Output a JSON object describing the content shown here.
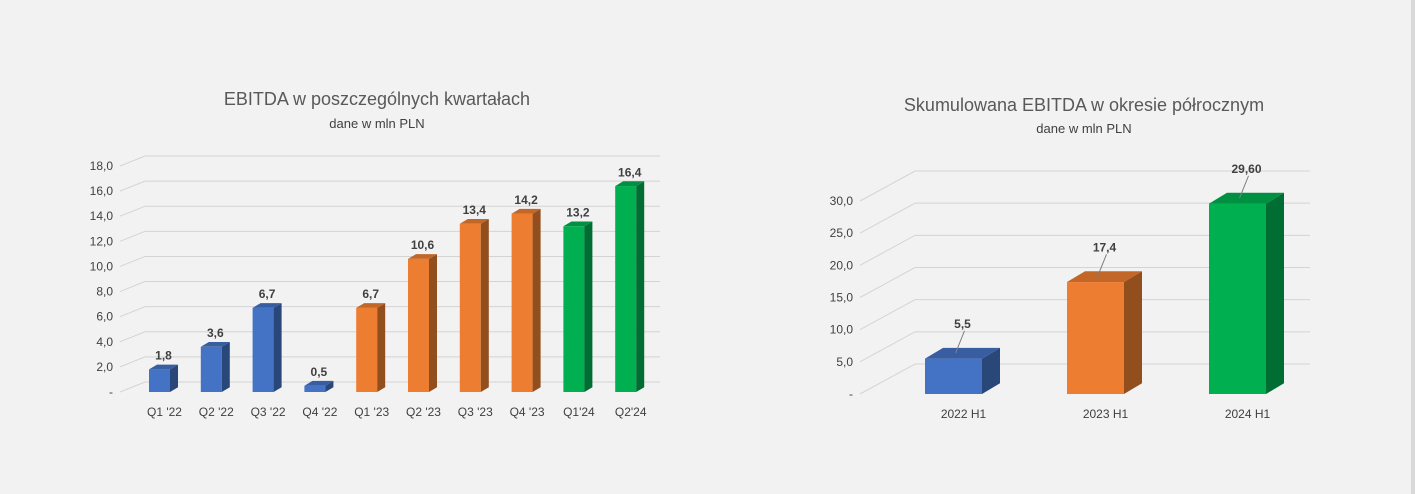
{
  "chart_data": [
    {
      "type": "bar",
      "title": "EBITDA w poszczególnych kwartałach",
      "subtitle": "dane w mln PLN",
      "categories": [
        "Q1 '22",
        "Q2 '22",
        "Q3 '22",
        "Q4 '22",
        "Q1 '23",
        "Q2 '23",
        "Q3 '23",
        "Q4 '23",
        "Q1'24",
        "Q2'24"
      ],
      "values": [
        1.8,
        3.6,
        6.7,
        0.5,
        6.7,
        10.6,
        13.4,
        14.2,
        13.2,
        16.4
      ],
      "data_labels": [
        "1,8",
        "3,6",
        "6,7",
        "0,5",
        "6,7",
        "10,6",
        "13,4",
        "14,2",
        "13,2",
        "16,4"
      ],
      "colors": [
        "#4472c4",
        "#4472c4",
        "#4472c4",
        "#4472c4",
        "#ed7d31",
        "#ed7d31",
        "#ed7d31",
        "#ed7d31",
        "#00b050",
        "#00b050"
      ],
      "yticks": [
        "-",
        "2,0",
        "4,0",
        "6,0",
        "8,0",
        "10,0",
        "12,0",
        "14,0",
        "16,0",
        "18,0"
      ],
      "ylim": [
        0,
        18
      ],
      "grid": true,
      "legend": "none"
    },
    {
      "type": "bar",
      "title": "Skumulowana EBITDA w okresie półrocznym",
      "subtitle": "dane w mln PLN",
      "categories": [
        "2022 H1",
        "2023 H1",
        "2024 H1"
      ],
      "values": [
        5.5,
        17.4,
        29.6
      ],
      "data_labels": [
        "5,5",
        "17,4",
        "29,60"
      ],
      "colors": [
        "#4472c4",
        "#ed7d31",
        "#00b050"
      ],
      "yticks": [
        "-",
        "5,0",
        "10,0",
        "15,0",
        "20,0",
        "25,0",
        "30,0"
      ],
      "ylim": [
        0,
        30
      ],
      "grid": true,
      "legend": "none"
    }
  ]
}
